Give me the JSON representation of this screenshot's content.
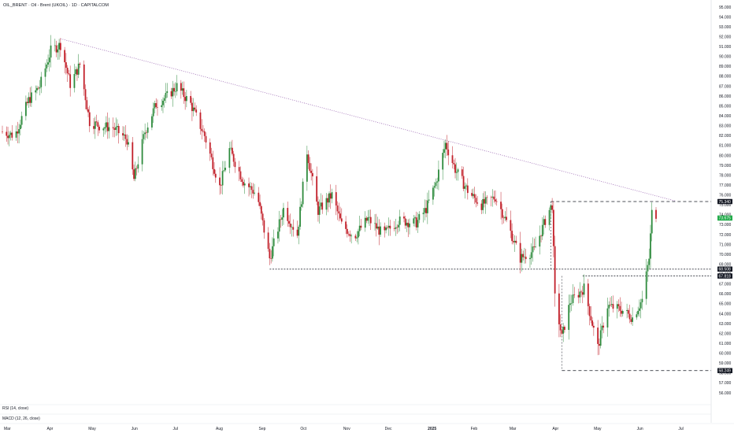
{
  "header": {
    "title": "OIL_BRENT · Oil - Brent (UKOIL) · 1D · CAPITALCOM"
  },
  "indicators": {
    "rsi": "RSI (14, close)",
    "macd": "MACD (12, 26, close)"
  },
  "colors": {
    "up": "#2e8b3d",
    "down": "#c2202a",
    "trend": "#9c6ab3",
    "price_tag": "#22ab4a",
    "level_tag": "#131722"
  },
  "chart_data": {
    "type": "candlestick",
    "title": "OIL_BRENT · Oil - Brent (UKOIL) · 1D · CAPITALCOM",
    "ylim": [
      56.0,
      95.5
    ],
    "y_ticks": [
      "95.000",
      "94.000",
      "93.000",
      "92.000",
      "91.000",
      "90.000",
      "89.000",
      "88.000",
      "87.000",
      "86.000",
      "85.000",
      "84.000",
      "83.000",
      "82.000",
      "81.000",
      "80.000",
      "79.000",
      "78.000",
      "77.000",
      "76.000",
      "75.000",
      "74.000",
      "73.000",
      "72.000",
      "71.000",
      "70.000",
      "69.000",
      "68.000",
      "67.000",
      "66.000",
      "65.000",
      "64.000",
      "63.000",
      "62.000",
      "61.000",
      "60.000",
      "59.000",
      "58.000",
      "57.000",
      "56.000"
    ],
    "x_ticks": [
      "Mar",
      "Apr",
      "May",
      "Jun",
      "Jul",
      "Aug",
      "Sep",
      "Oct",
      "Nov",
      "Dec",
      "2025",
      "Feb",
      "Mar",
      "Apr",
      "May",
      "Jun",
      "Jul"
    ],
    "current_price": "73.675",
    "levels": [
      {
        "price": 75.34,
        "label": "75.340"
      },
      {
        "price": 68.508,
        "label": "68.508"
      },
      {
        "price": 67.818,
        "label": "67.818"
      },
      {
        "price": 58.249,
        "label": "58.249"
      }
    ],
    "trendline": {
      "from": {
        "date": "2024-04-12",
        "price": 91.8
      },
      "to": {
        "date": "2025-06-30",
        "price": 75.4
      }
    },
    "anchors": [
      [
        "2024-03-01",
        82.4
      ],
      [
        "2024-03-10",
        82.0
      ],
      [
        "2024-03-20",
        85.6
      ],
      [
        "2024-03-28",
        87.0
      ],
      [
        "2024-04-05",
        90.6
      ],
      [
        "2024-04-12",
        91.2
      ],
      [
        "2024-04-19",
        87.2
      ],
      [
        "2024-04-26",
        89.2
      ],
      [
        "2024-05-03",
        83.4
      ],
      [
        "2024-05-10",
        83.0
      ],
      [
        "2024-05-20",
        82.8
      ],
      [
        "2024-05-30",
        81.6
      ],
      [
        "2024-06-04",
        77.6
      ],
      [
        "2024-06-12",
        82.4
      ],
      [
        "2024-06-20",
        85.2
      ],
      [
        "2024-06-28",
        86.0
      ],
      [
        "2024-07-05",
        87.0
      ],
      [
        "2024-07-15",
        85.2
      ],
      [
        "2024-07-25",
        82.0
      ],
      [
        "2024-08-05",
        76.8
      ],
      [
        "2024-08-12",
        80.6
      ],
      [
        "2024-08-22",
        77.4
      ],
      [
        "2024-09-01",
        76.0
      ],
      [
        "2024-09-10",
        69.6
      ],
      [
        "2024-09-20",
        74.6
      ],
      [
        "2024-09-30",
        72.0
      ],
      [
        "2024-10-07",
        80.4
      ],
      [
        "2024-10-15",
        74.4
      ],
      [
        "2024-10-25",
        76.0
      ],
      [
        "2024-11-01",
        73.0
      ],
      [
        "2024-11-10",
        71.8
      ],
      [
        "2024-11-20",
        73.6
      ],
      [
        "2024-12-01",
        72.0
      ],
      [
        "2024-12-12",
        73.4
      ],
      [
        "2024-12-25",
        73.2
      ],
      [
        "2025-01-01",
        74.6
      ],
      [
        "2025-01-08",
        77.2
      ],
      [
        "2025-01-15",
        81.2
      ],
      [
        "2025-01-22",
        78.6
      ],
      [
        "2025-02-01",
        76.2
      ],
      [
        "2025-02-10",
        75.0
      ],
      [
        "2025-02-20",
        75.8
      ],
      [
        "2025-03-01",
        73.0
      ],
      [
        "2025-03-10",
        69.6
      ],
      [
        "2025-03-20",
        70.4
      ],
      [
        "2025-03-30",
        74.2
      ],
      [
        "2025-04-02",
        75.0
      ],
      [
        "2025-04-04",
        65.6
      ],
      [
        "2025-04-09",
        61.6
      ],
      [
        "2025-04-15",
        65.2
      ],
      [
        "2025-04-25",
        66.6
      ],
      [
        "2025-05-05",
        60.6
      ],
      [
        "2025-05-12",
        64.8
      ],
      [
        "2025-05-22",
        64.4
      ],
      [
        "2025-05-30",
        63.6
      ],
      [
        "2025-06-06",
        65.4
      ],
      [
        "2025-06-11",
        69.6
      ],
      [
        "2025-06-13",
        74.2
      ],
      [
        "2025-06-16",
        73.6
      ]
    ]
  }
}
